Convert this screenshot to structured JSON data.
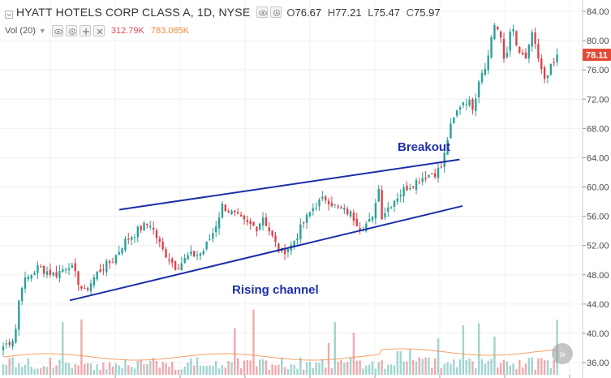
{
  "header": {
    "title": "HYATT HOTELS CORP CLASS A, 1D, NYSE",
    "ohlc": {
      "o_label": "O",
      "o": "76.67",
      "h_label": "H",
      "h": "77.21",
      "l_label": "L",
      "l": "75.47",
      "c_label": "C",
      "c": "75.97"
    },
    "volume_label": "Vol (20)",
    "volume_value": "312.79K",
    "volume_ma": "783.085K"
  },
  "colors": {
    "up": "#2aa198",
    "down": "#e0404a",
    "annotation": "#1d2fa8",
    "price_tag": "#e44c3a",
    "volume_value": "#e04c5a",
    "volume_ma": "#f08a3c"
  },
  "icons": {
    "collapse": "chevron-down-icon",
    "visibility": "eye-icon",
    "settings": "gear-icon",
    "add": "plus-icon",
    "close": "close-icon",
    "scroll": "double-chevron-right-icon"
  },
  "chart_data": {
    "type": "candlestick",
    "price_axis": {
      "ticks": [
        "84.00",
        "80.00",
        "76.00",
        "72.00",
        "68.00",
        "64.00",
        "60.00",
        "56.00",
        "52.00",
        "48.00",
        "44.00",
        "40.00",
        "36.00"
      ],
      "range": [
        35.0,
        85.5
      ]
    },
    "last_price": "78.11",
    "grid": true,
    "annotations": [
      {
        "text": "Breakout"
      },
      {
        "text": "Rising channel"
      }
    ],
    "trendlines": [
      {
        "name": "upper-channel",
        "points": [
          [
            0.205,
            56.9
          ],
          [
            0.79,
            63.75
          ]
        ]
      },
      {
        "name": "lower-channel",
        "points": [
          [
            0.12,
            44.5
          ],
          [
            0.795,
            57.4
          ]
        ]
      }
    ],
    "price_waypoints": [
      [
        0.0,
        38.2
      ],
      [
        0.02,
        39.5
      ],
      [
        0.03,
        46.5
      ],
      [
        0.06,
        49.0
      ],
      [
        0.09,
        48.0
      ],
      [
        0.115,
        49.5
      ],
      [
        0.14,
        45.5
      ],
      [
        0.165,
        48.5
      ],
      [
        0.19,
        50.0
      ],
      [
        0.21,
        52.5
      ],
      [
        0.24,
        54.5
      ],
      [
        0.255,
        55.0
      ],
      [
        0.275,
        51.5
      ],
      [
        0.3,
        49.0
      ],
      [
        0.32,
        50.5
      ],
      [
        0.345,
        51.0
      ],
      [
        0.365,
        54.0
      ],
      [
        0.38,
        57.5
      ],
      [
        0.395,
        56.5
      ],
      [
        0.42,
        55.0
      ],
      [
        0.44,
        54.5
      ],
      [
        0.45,
        56.0
      ],
      [
        0.47,
        52.5
      ],
      [
        0.48,
        51.0
      ],
      [
        0.5,
        52.0
      ],
      [
        0.52,
        55.0
      ],
      [
        0.54,
        57.5
      ],
      [
        0.56,
        58.5
      ],
      [
        0.58,
        57.0
      ],
      [
        0.6,
        56.5
      ],
      [
        0.62,
        54.5
      ],
      [
        0.64,
        55.5
      ],
      [
        0.65,
        60.5
      ],
      [
        0.655,
        56.0
      ],
      [
        0.68,
        58.5
      ],
      [
        0.7,
        60.0
      ],
      [
        0.73,
        61.5
      ],
      [
        0.75,
        62.0
      ],
      [
        0.762,
        63.0
      ],
      [
        0.768,
        66.0
      ],
      [
        0.775,
        68.0
      ],
      [
        0.79,
        71.0
      ],
      [
        0.8,
        72.0
      ],
      [
        0.815,
        71.0
      ],
      [
        0.825,
        75.0
      ],
      [
        0.84,
        77.5
      ],
      [
        0.85,
        82.5
      ],
      [
        0.86,
        81.0
      ],
      [
        0.87,
        76.5
      ],
      [
        0.88,
        82.5
      ],
      [
        0.89,
        79.0
      ],
      [
        0.905,
        77.0
      ],
      [
        0.915,
        81.0
      ],
      [
        0.93,
        77.0
      ],
      [
        0.94,
        74.0
      ],
      [
        0.95,
        76.5
      ],
      [
        0.96,
        77.5
      ]
    ]
  }
}
